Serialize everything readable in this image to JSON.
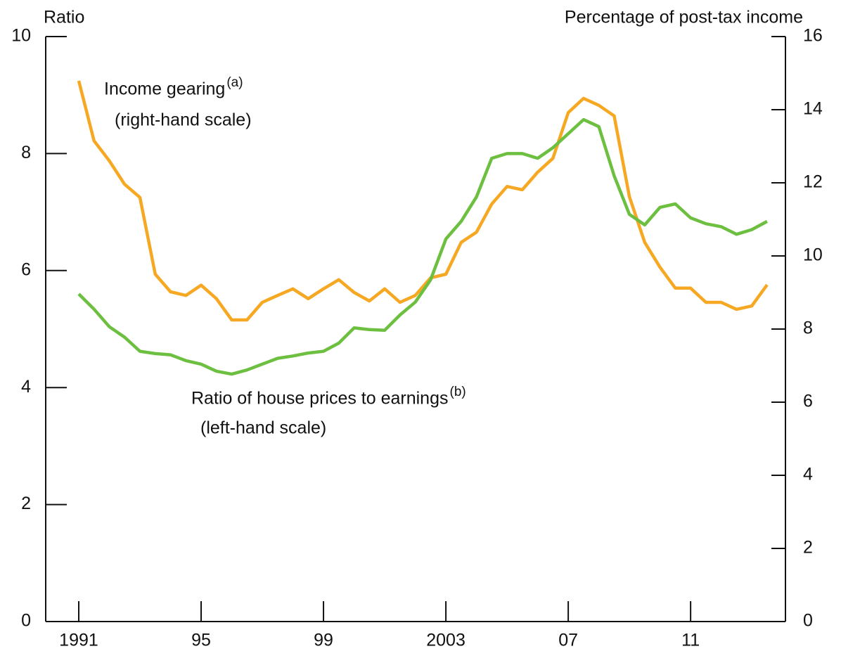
{
  "chart_data": {
    "type": "line",
    "y_label": "Ratio",
    "y2_label": "Percentage of post-tax income",
    "x": [
      1991,
      1991.5,
      1992,
      1992.5,
      1993,
      1993.5,
      1994,
      1994.5,
      1995,
      1995.5,
      1996,
      1996.5,
      1997,
      1997.5,
      1998,
      1998.5,
      1999,
      1999.5,
      2000,
      2000.5,
      2001,
      2001.5,
      2002,
      2002.5,
      2003,
      2003.5,
      2004,
      2004.5,
      2005,
      2005.5,
      2006,
      2006.5,
      2007,
      2007.5,
      2008,
      2008.5,
      2009,
      2009.5,
      2010,
      2010.5,
      2011,
      2011.5,
      2012,
      2012.5,
      2013,
      2013.5
    ],
    "series": [
      {
        "name": "Income gearing",
        "sup": "(a)",
        "note": "(right-hand scale)",
        "color": "#f7a823",
        "axis": "y2",
        "values": [
          14.79,
          13.15,
          12.6,
          11.96,
          11.6,
          9.5,
          9.02,
          8.92,
          9.2,
          8.83,
          8.25,
          8.25,
          8.73,
          8.92,
          9.1,
          8.83,
          9.1,
          9.35,
          9.0,
          8.77,
          9.1,
          8.73,
          8.92,
          9.4,
          9.5,
          10.37,
          10.65,
          11.42,
          11.9,
          11.81,
          12.29,
          12.67,
          13.92,
          14.31,
          14.12,
          13.83,
          11.62,
          10.37,
          9.69,
          9.12,
          9.12,
          8.73,
          8.73,
          8.54,
          8.63,
          9.21
        ]
      },
      {
        "name": "Ratio of house prices to earnings",
        "sup": "(b)",
        "note": "(left-hand scale)",
        "color": "#6cbf3f",
        "axis": "y",
        "values": [
          5.6,
          5.34,
          5.04,
          4.86,
          4.62,
          4.58,
          4.56,
          4.46,
          4.4,
          4.28,
          4.23,
          4.3,
          4.4,
          4.5,
          4.54,
          4.59,
          4.62,
          4.76,
          5.02,
          4.99,
          4.98,
          5.24,
          5.46,
          5.84,
          6.54,
          6.84,
          7.26,
          7.92,
          8.0,
          8.0,
          7.92,
          8.1,
          8.34,
          8.58,
          8.46,
          7.62,
          6.96,
          6.78,
          7.08,
          7.14,
          6.9,
          6.8,
          6.75,
          6.62,
          6.7,
          6.84
        ]
      }
    ],
    "xlim": [
      1989.92,
      2014.1
    ],
    "xticks": [
      1991,
      {
        "value": 1995,
        "label": "95"
      },
      {
        "value": 1999,
        "label": "99"
      },
      2003,
      {
        "value": 2007,
        "label": "07"
      },
      {
        "value": 2011,
        "label": "11"
      }
    ],
    "ylim": [
      0,
      10
    ],
    "yticks": [
      0,
      2,
      4,
      6,
      8,
      10
    ],
    "y2lim": [
      0,
      16
    ],
    "y2ticks": [
      0,
      2,
      4,
      6,
      8,
      10,
      12,
      14,
      16
    ]
  }
}
